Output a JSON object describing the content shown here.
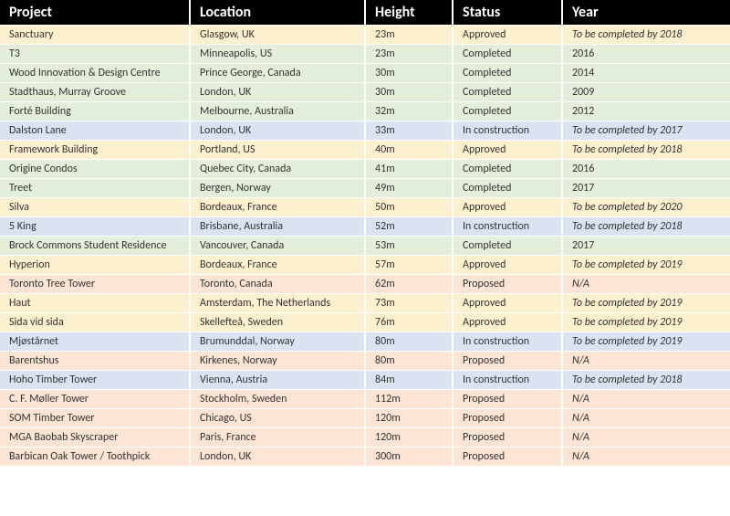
{
  "table": {
    "header_bg": "#000000",
    "header_color": "#ffffff",
    "header_fontsize": 16,
    "body_fontsize": 12,
    "body_color": "#333333",
    "status_colors": {
      "Approved": "#fdf0cf",
      "Completed": "#e3efda",
      "In construction": "#dae3f2",
      "Proposed": "#fde5d5"
    },
    "col_widths_pct": [
      26,
      24,
      12,
      15,
      23
    ],
    "columns": [
      "Project",
      "Location",
      "Height",
      "Status",
      "Year"
    ],
    "rows": [
      {
        "project": "Sanctuary",
        "location": "Glasgow, UK",
        "height": "23m",
        "status": "Approved",
        "year": "To be completed by 2018",
        "year_italic": true
      },
      {
        "project": "T3",
        "location": "Minneapolis, US",
        "height": "23m",
        "status": "Completed",
        "year": "2016",
        "year_italic": false
      },
      {
        "project": "Wood Innovation & Design Centre",
        "location": "Prince George, Canada",
        "height": "30m",
        "status": "Completed",
        "year": "2014",
        "year_italic": false
      },
      {
        "project": "Stadthaus, Murray Groove",
        "location": "London, UK",
        "height": "30m",
        "status": "Completed",
        "year": "2009",
        "year_italic": false
      },
      {
        "project": "Forté Building",
        "location": "Melbourne, Australia",
        "height": "32m",
        "status": "Completed",
        "year": "2012",
        "year_italic": false
      },
      {
        "project": "Dalston Lane",
        "location": "London, UK",
        "height": "33m",
        "status": "In construction",
        "year": "To be completed by 2017",
        "year_italic": true
      },
      {
        "project": "Framework Building",
        "location": "Portland, US",
        "height": "40m",
        "status": "Approved",
        "year": "To be completed by 2018",
        "year_italic": true
      },
      {
        "project": "Origine Condos",
        "location": "Quebec City, Canada",
        "height": "41m",
        "status": "Completed",
        "year": "2016",
        "year_italic": false
      },
      {
        "project": "Treet",
        "location": "Bergen, Norway",
        "height": "49m",
        "status": "Completed",
        "year": "2017",
        "year_italic": false
      },
      {
        "project": "Silva",
        "location": "Bordeaux, France",
        "height": "50m",
        "status": "Approved",
        "year": "To be completed by 2020",
        "year_italic": true
      },
      {
        "project": "5 King",
        "location": "Brisbane, Australia",
        "height": "52m",
        "status": "In construction",
        "year": "To be completed by 2018",
        "year_italic": true
      },
      {
        "project": "Brock Commons Student Residence",
        "location": "Vancouver, Canada",
        "height": "53m",
        "status": "Completed",
        "year": "2017",
        "year_italic": false
      },
      {
        "project": "Hyperion",
        "location": "Bordeaux, France",
        "height": "57m",
        "status": "Approved",
        "year": "To be completed by 2019",
        "year_italic": true
      },
      {
        "project": "Toronto Tree Tower",
        "location": "Toronto, Canada",
        "height": "62m",
        "status": "Proposed",
        "year": "N/A",
        "year_italic": true
      },
      {
        "project": "Haut",
        "location": "Amsterdam, The Netherlands",
        "height": "73m",
        "status": "Approved",
        "year": "To be completed by 2019",
        "year_italic": true
      },
      {
        "project": "Sida vid sida",
        "location": "Skellefteå, Sweden",
        "height": "76m",
        "status": "Approved",
        "year": "To be completed by 2019",
        "year_italic": true
      },
      {
        "project": "Mjøstårnet",
        "location": "Brumunddal, Norway",
        "height": "80m",
        "status": "In construction",
        "year": "To be completed by 2019",
        "year_italic": true
      },
      {
        "project": "Barentshus",
        "location": "Kirkenes, Norway",
        "height": "80m",
        "status": "Proposed",
        "year": "N/A",
        "year_italic": true
      },
      {
        "project": "Hoho Timber Tower",
        "location": "Vienna, Austria",
        "height": "84m",
        "status": "In construction",
        "year": "To be completed by 2018",
        "year_italic": true
      },
      {
        "project": "C. F. Møller Tower",
        "location": "Stockholm, Sweden",
        "height": "112m",
        "status": "Proposed",
        "year": "N/A",
        "year_italic": true
      },
      {
        "project": "SOM Timber Tower",
        "location": "Chicago, US",
        "height": "120m",
        "status": "Proposed",
        "year": "N/A",
        "year_italic": true
      },
      {
        "project": "MGA Baobab Skyscraper",
        "location": "Paris, France",
        "height": "120m",
        "status": "Proposed",
        "year": "N/A",
        "year_italic": true
      },
      {
        "project": "Barbican Oak Tower / Toothpick",
        "location": "London, UK",
        "height": "300m",
        "status": "Proposed",
        "year": "N/A",
        "year_italic": true
      }
    ]
  }
}
